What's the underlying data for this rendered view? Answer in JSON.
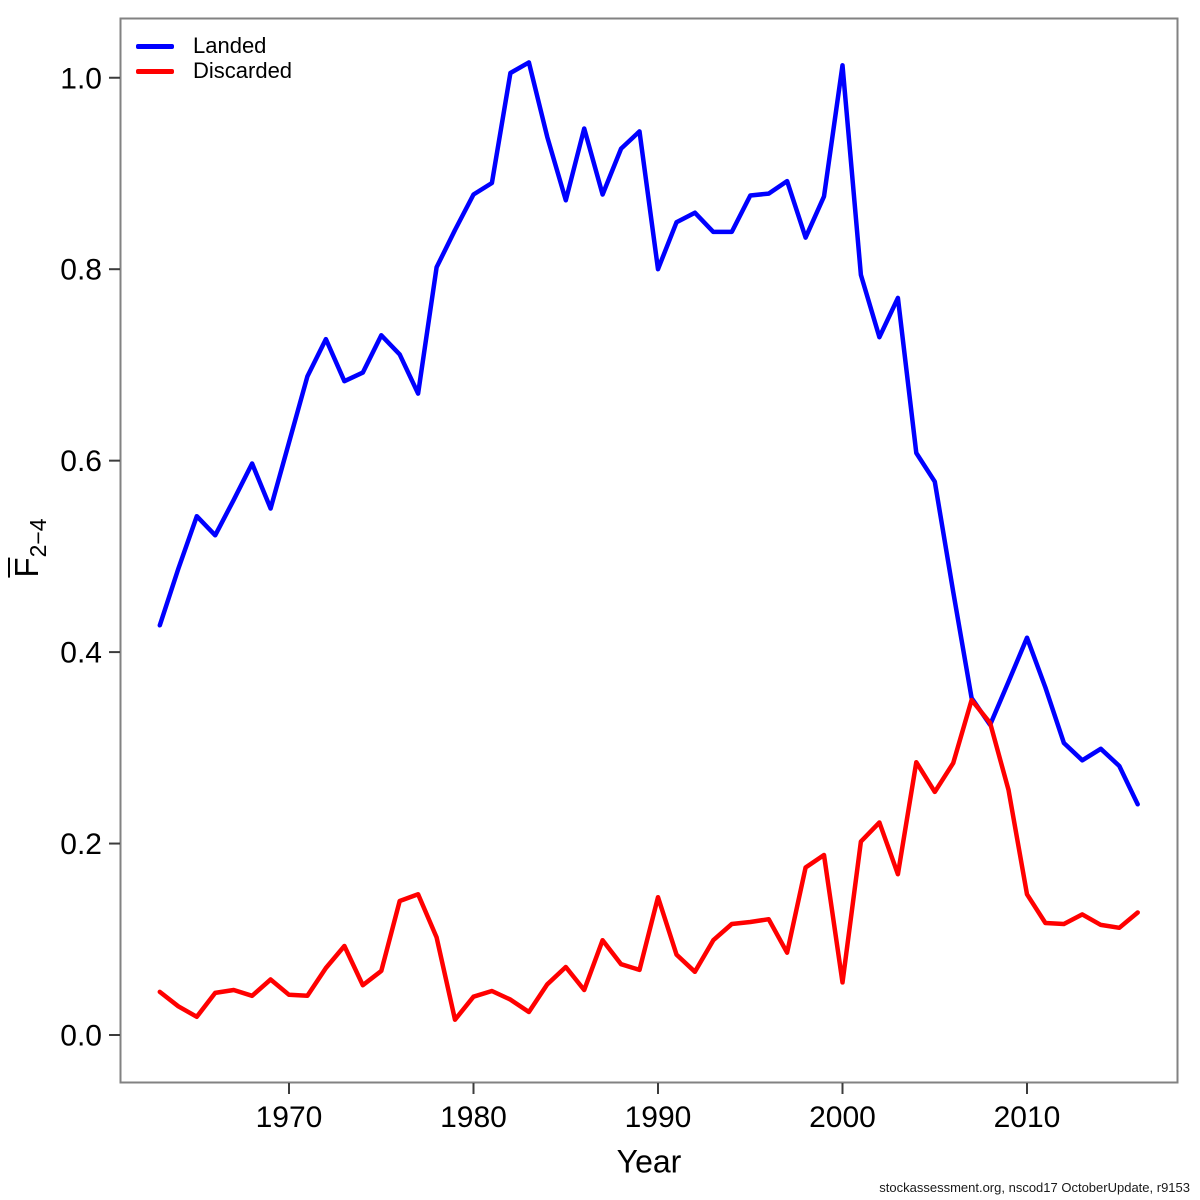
{
  "figure": {
    "x_axis_label": "Year",
    "y_axis_label": {
      "base": "F",
      "subscript": "2−4",
      "display": "F̄2−4"
    },
    "footer_credit": "stockassessment.org, nscod17  OctoberUpdate, r9153",
    "legend": {
      "items": [
        {
          "label": "Landed",
          "color": "#0000FF"
        },
        {
          "label": "Discarded",
          "color": "#FF0000"
        }
      ]
    }
  },
  "chart_data": {
    "type": "line",
    "title": "",
    "xlabel": "Year",
    "ylabel": "F̄2−4",
    "grid": false,
    "legend_position": "top-left",
    "x_ticks": [
      1970,
      1980,
      1990,
      2000,
      2010
    ],
    "y_ticks": [
      0.0,
      0.2,
      0.4,
      0.6,
      0.8,
      1.0
    ],
    "xlim": [
      1960.8,
      2018.2
    ],
    "ylim": [
      -0.05,
      1.06
    ],
    "x": [
      1963,
      1964,
      1965,
      1966,
      1967,
      1968,
      1969,
      1970,
      1971,
      1972,
      1973,
      1974,
      1975,
      1976,
      1977,
      1978,
      1979,
      1980,
      1981,
      1982,
      1983,
      1984,
      1985,
      1986,
      1987,
      1988,
      1989,
      1990,
      1991,
      1992,
      1993,
      1994,
      1995,
      1996,
      1997,
      1998,
      1999,
      2000,
      2001,
      2002,
      2003,
      2004,
      2005,
      2006,
      2007,
      2008,
      2009,
      2010,
      2011,
      2012,
      2013,
      2014,
      2015,
      2016
    ],
    "series": [
      {
        "name": "Landed",
        "color": "#0000FF",
        "values": [
          0.428,
          0.487,
          0.542,
          0.522,
          0.559,
          0.597,
          0.55,
          0.619,
          0.688,
          0.727,
          0.683,
          0.692,
          0.731,
          0.711,
          0.67,
          0.802,
          0.841,
          0.878,
          0.89,
          1.005,
          1.016,
          0.938,
          0.872,
          0.947,
          0.878,
          0.926,
          0.944,
          0.8,
          0.849,
          0.859,
          0.839,
          0.839,
          0.877,
          0.879,
          0.892,
          0.833,
          0.876,
          1.013,
          0.794,
          0.729,
          0.77,
          0.608,
          0.578,
          0.463,
          0.352,
          0.324,
          0.369,
          0.415,
          0.363,
          0.305,
          0.287,
          0.299,
          0.281,
          0.241
        ]
      },
      {
        "name": "Discarded",
        "color": "#FF0000",
        "values": [
          0.045,
          0.03,
          0.019,
          0.044,
          0.047,
          0.041,
          0.058,
          0.042,
          0.041,
          0.07,
          0.093,
          0.052,
          0.067,
          0.14,
          0.147,
          0.102,
          0.016,
          0.04,
          0.046,
          0.037,
          0.024,
          0.053,
          0.071,
          0.047,
          0.099,
          0.074,
          0.068,
          0.144,
          0.084,
          0.066,
          0.099,
          0.116,
          0.118,
          0.121,
          0.086,
          0.175,
          0.188,
          0.055,
          0.202,
          0.222,
          0.168,
          0.285,
          0.254,
          0.284,
          0.35,
          0.326,
          0.256,
          0.147,
          0.117,
          0.116,
          0.126,
          0.115,
          0.112,
          0.128
        ]
      }
    ]
  }
}
